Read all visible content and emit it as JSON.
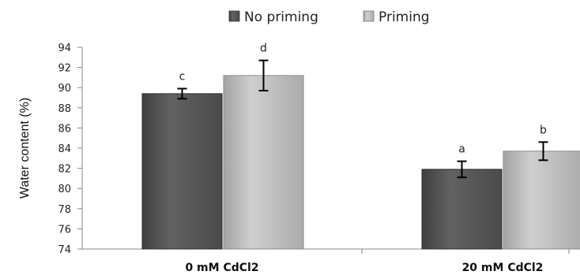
{
  "chart_data": {
    "type": "bar",
    "title": "",
    "xlabel": "",
    "ylabel": "Water content (%)",
    "ylim": [
      74,
      94
    ],
    "yticks": [
      74,
      76,
      78,
      80,
      82,
      84,
      86,
      88,
      90,
      92,
      94
    ],
    "grid": false,
    "legend_position": "top",
    "categories": [
      "0 mM CdCl2",
      "20 mM CdCl2"
    ],
    "series": [
      {
        "name": "No priming",
        "color": "#555555",
        "values": [
          89.4,
          81.9
        ],
        "errors": [
          0.5,
          0.8
        ],
        "significance": [
          "c",
          "a"
        ]
      },
      {
        "name": "Priming",
        "color": "#b5b5b5",
        "values": [
          91.2,
          83.7
        ],
        "errors": [
          1.5,
          0.9
        ],
        "significance": [
          "d",
          "b"
        ]
      }
    ]
  }
}
